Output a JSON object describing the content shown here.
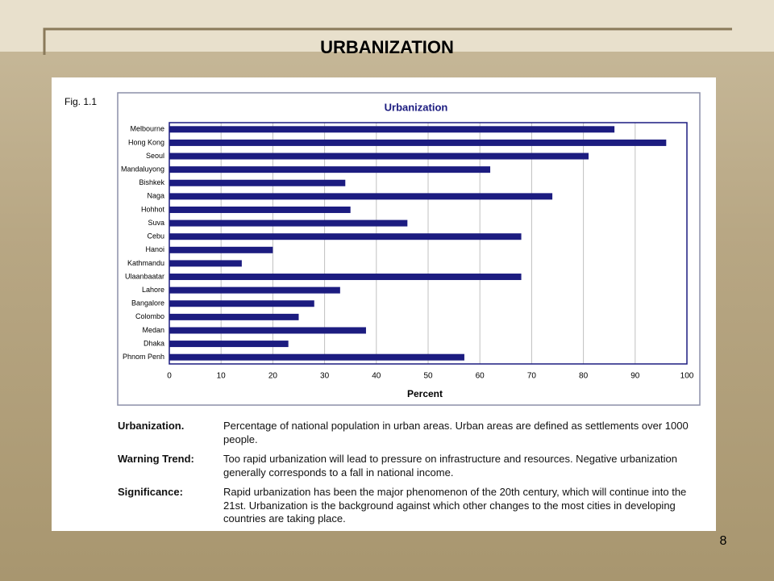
{
  "slide_title": "URBANIZATION",
  "figure_label": "Fig. 1.1",
  "chart_data": {
    "type": "barh",
    "title": "Urbanization",
    "x_label": "Percent",
    "categories": [
      "Melbourne",
      "Hong Kong",
      "Seoul",
      "Mandaluyong",
      "Bishkek",
      "Naga",
      "Hohhot",
      "Suva",
      "Cebu",
      "Hanoi",
      "Kathmandu",
      "Ulaanbaatar",
      "Lahore",
      "Bangalore",
      "Colombo",
      "Medan",
      "Dhaka",
      "Phnom Penh"
    ],
    "values": [
      86,
      96,
      81,
      62,
      34,
      74,
      35,
      46,
      68,
      20,
      14,
      68,
      33,
      28,
      25,
      38,
      23,
      57
    ],
    "color": "#1c1c80",
    "xlim": [
      0,
      100
    ],
    "xticks": [
      0,
      10,
      20,
      30,
      40,
      50,
      60,
      70,
      80,
      90,
      100
    ],
    "grid": true
  },
  "definitions": [
    {
      "term": "Urbanization.",
      "text": "Percentage of national population in urban areas.  Urban areas are defined as settlements over 1000 people."
    },
    {
      "term": "Warning Trend:",
      "text": "Too rapid urbanization will lead to pressure on infrastructure and resources.  Negative urbanization generally corresponds to a fall in national income."
    },
    {
      "term": "Significance:",
      "text": "Rapid urbanization has been the major phenomenon of the 20th century, which will continue into the 21st.  Urbanization is the background against which other changes to the most cities in developing countries are taking place."
    }
  ],
  "page_number": "8"
}
